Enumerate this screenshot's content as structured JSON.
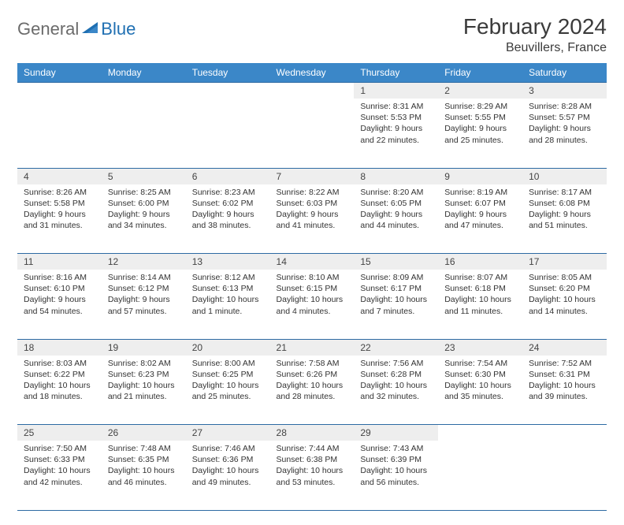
{
  "logo": {
    "part1": "General",
    "part2": "Blue"
  },
  "title": "February 2024",
  "location": "Beuvillers, France",
  "colors": {
    "header_bg": "#3b87c8",
    "header_text": "#ffffff",
    "daynum_bg": "#eeeeee",
    "row_border": "#2d6aa3",
    "logo_gray": "#6b6b6b",
    "logo_blue": "#1f6fb2",
    "body_text": "#333333"
  },
  "weekdays": [
    "Sunday",
    "Monday",
    "Tuesday",
    "Wednesday",
    "Thursday",
    "Friday",
    "Saturday"
  ],
  "layout": {
    "cols": 7,
    "rows": 5,
    "first_weekday_index": 4,
    "days_in_month": 29
  },
  "days": [
    {
      "n": 1,
      "sunrise": "8:31 AM",
      "sunset": "5:53 PM",
      "daylight": "9 hours and 22 minutes."
    },
    {
      "n": 2,
      "sunrise": "8:29 AM",
      "sunset": "5:55 PM",
      "daylight": "9 hours and 25 minutes."
    },
    {
      "n": 3,
      "sunrise": "8:28 AM",
      "sunset": "5:57 PM",
      "daylight": "9 hours and 28 minutes."
    },
    {
      "n": 4,
      "sunrise": "8:26 AM",
      "sunset": "5:58 PM",
      "daylight": "9 hours and 31 minutes."
    },
    {
      "n": 5,
      "sunrise": "8:25 AM",
      "sunset": "6:00 PM",
      "daylight": "9 hours and 34 minutes."
    },
    {
      "n": 6,
      "sunrise": "8:23 AM",
      "sunset": "6:02 PM",
      "daylight": "9 hours and 38 minutes."
    },
    {
      "n": 7,
      "sunrise": "8:22 AM",
      "sunset": "6:03 PM",
      "daylight": "9 hours and 41 minutes."
    },
    {
      "n": 8,
      "sunrise": "8:20 AM",
      "sunset": "6:05 PM",
      "daylight": "9 hours and 44 minutes."
    },
    {
      "n": 9,
      "sunrise": "8:19 AM",
      "sunset": "6:07 PM",
      "daylight": "9 hours and 47 minutes."
    },
    {
      "n": 10,
      "sunrise": "8:17 AM",
      "sunset": "6:08 PM",
      "daylight": "9 hours and 51 minutes."
    },
    {
      "n": 11,
      "sunrise": "8:16 AM",
      "sunset": "6:10 PM",
      "daylight": "9 hours and 54 minutes."
    },
    {
      "n": 12,
      "sunrise": "8:14 AM",
      "sunset": "6:12 PM",
      "daylight": "9 hours and 57 minutes."
    },
    {
      "n": 13,
      "sunrise": "8:12 AM",
      "sunset": "6:13 PM",
      "daylight": "10 hours and 1 minute."
    },
    {
      "n": 14,
      "sunrise": "8:10 AM",
      "sunset": "6:15 PM",
      "daylight": "10 hours and 4 minutes."
    },
    {
      "n": 15,
      "sunrise": "8:09 AM",
      "sunset": "6:17 PM",
      "daylight": "10 hours and 7 minutes."
    },
    {
      "n": 16,
      "sunrise": "8:07 AM",
      "sunset": "6:18 PM",
      "daylight": "10 hours and 11 minutes."
    },
    {
      "n": 17,
      "sunrise": "8:05 AM",
      "sunset": "6:20 PM",
      "daylight": "10 hours and 14 minutes."
    },
    {
      "n": 18,
      "sunrise": "8:03 AM",
      "sunset": "6:22 PM",
      "daylight": "10 hours and 18 minutes."
    },
    {
      "n": 19,
      "sunrise": "8:02 AM",
      "sunset": "6:23 PM",
      "daylight": "10 hours and 21 minutes."
    },
    {
      "n": 20,
      "sunrise": "8:00 AM",
      "sunset": "6:25 PM",
      "daylight": "10 hours and 25 minutes."
    },
    {
      "n": 21,
      "sunrise": "7:58 AM",
      "sunset": "6:26 PM",
      "daylight": "10 hours and 28 minutes."
    },
    {
      "n": 22,
      "sunrise": "7:56 AM",
      "sunset": "6:28 PM",
      "daylight": "10 hours and 32 minutes."
    },
    {
      "n": 23,
      "sunrise": "7:54 AM",
      "sunset": "6:30 PM",
      "daylight": "10 hours and 35 minutes."
    },
    {
      "n": 24,
      "sunrise": "7:52 AM",
      "sunset": "6:31 PM",
      "daylight": "10 hours and 39 minutes."
    },
    {
      "n": 25,
      "sunrise": "7:50 AM",
      "sunset": "6:33 PM",
      "daylight": "10 hours and 42 minutes."
    },
    {
      "n": 26,
      "sunrise": "7:48 AM",
      "sunset": "6:35 PM",
      "daylight": "10 hours and 46 minutes."
    },
    {
      "n": 27,
      "sunrise": "7:46 AM",
      "sunset": "6:36 PM",
      "daylight": "10 hours and 49 minutes."
    },
    {
      "n": 28,
      "sunrise": "7:44 AM",
      "sunset": "6:38 PM",
      "daylight": "10 hours and 53 minutes."
    },
    {
      "n": 29,
      "sunrise": "7:43 AM",
      "sunset": "6:39 PM",
      "daylight": "10 hours and 56 minutes."
    }
  ],
  "labels": {
    "sunrise": "Sunrise:",
    "sunset": "Sunset:",
    "daylight": "Daylight:"
  }
}
